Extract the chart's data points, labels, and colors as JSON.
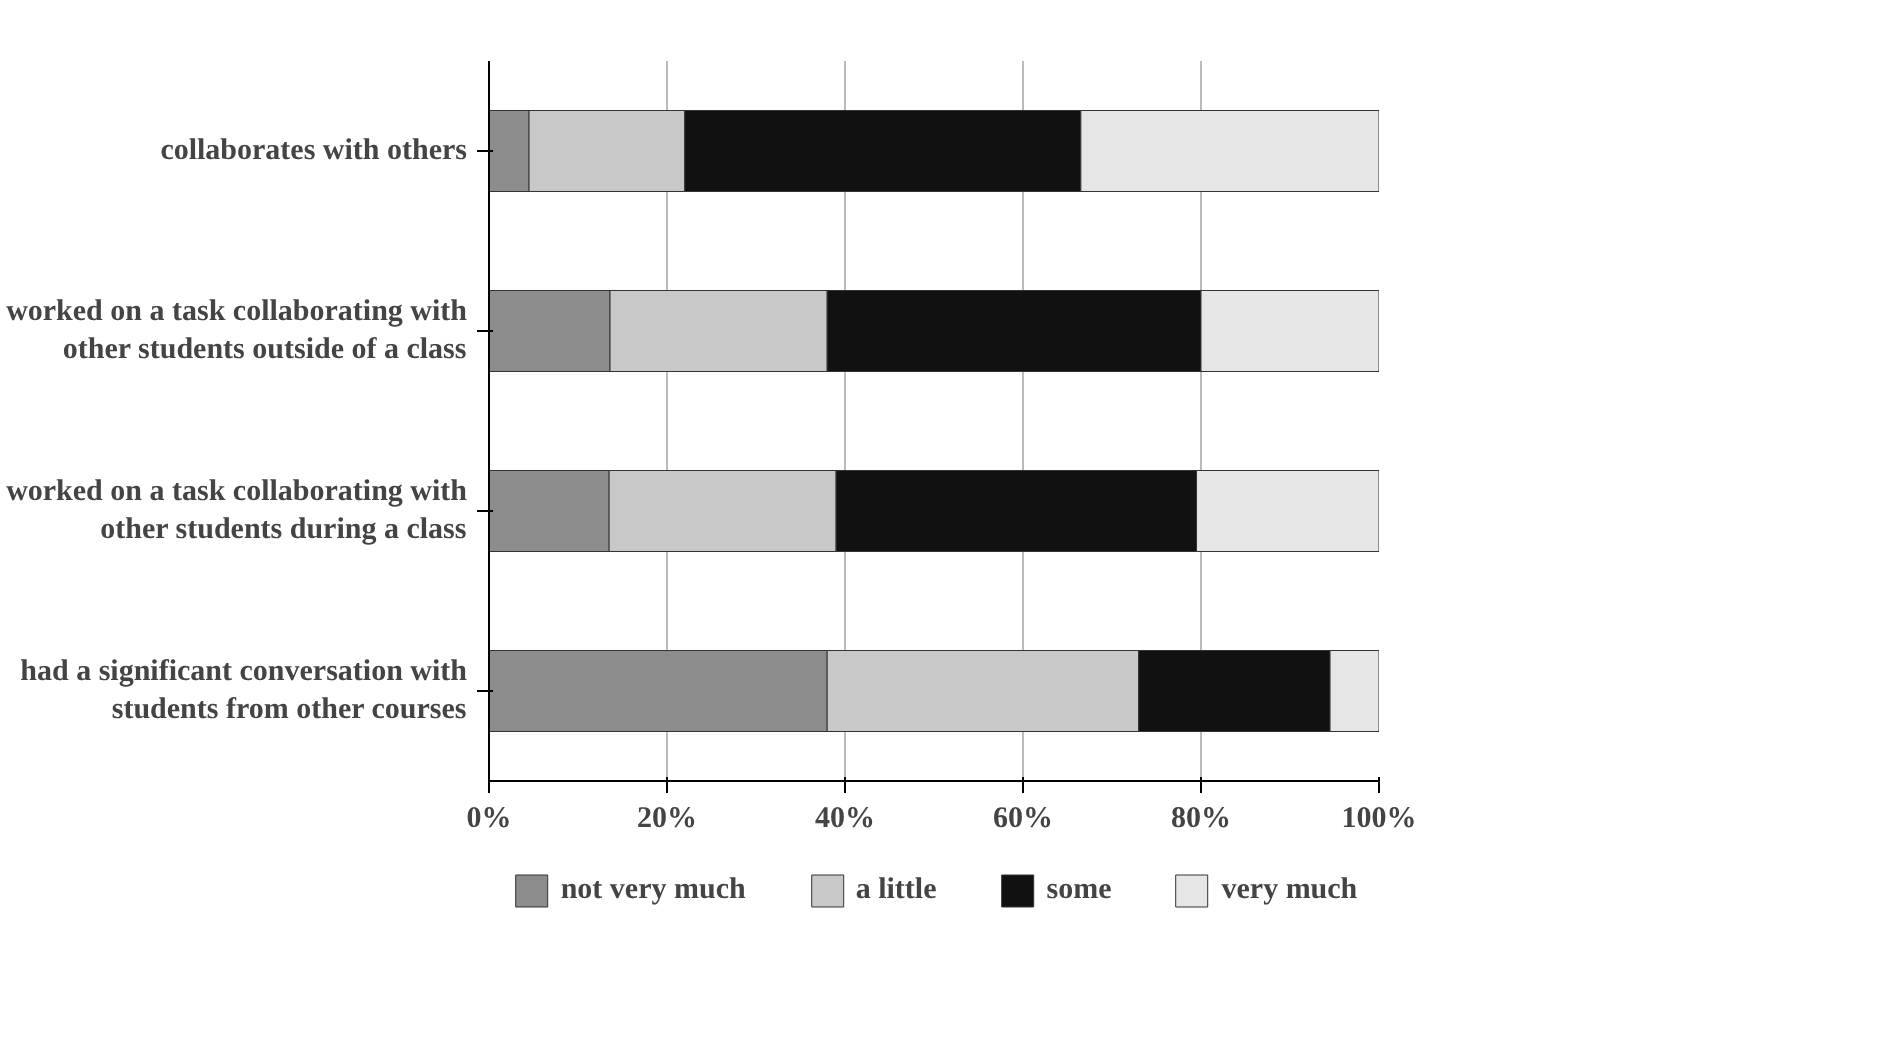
{
  "chart_data": {
    "type": "bar",
    "orientation": "horizontal",
    "stacked": true,
    "categories": [
      "collaborates with others",
      "worked on a task collaborating with other students outside of a class",
      "worked on a task collaborating with other students during a class",
      "had a significant conversation with students from other courses"
    ],
    "series": [
      {
        "name": "not very much",
        "color": "#8c8c8c",
        "values": [
          4.5,
          13.6,
          13.5,
          38
        ]
      },
      {
        "name": "a little",
        "color": "#c8c8c8",
        "values": [
          17.5,
          24.4,
          25.5,
          35
        ]
      },
      {
        "name": "some",
        "color": "#111111",
        "values": [
          44.5,
          42,
          40.5,
          21.5
        ]
      },
      {
        "name": "very much",
        "color": "#e6e6e6",
        "values": [
          33.5,
          20,
          20.5,
          5.5
        ]
      }
    ],
    "xlim": [
      0,
      100
    ],
    "xticks": [
      {
        "value": 0,
        "label": "0%"
      },
      {
        "value": 20,
        "label": "20%"
      },
      {
        "value": 40,
        "label": "40%"
      },
      {
        "value": 60,
        "label": "60%"
      },
      {
        "value": 80,
        "label": "80%"
      },
      {
        "value": 100,
        "label": "100%"
      }
    ],
    "grid": "x",
    "legend": "bottom"
  }
}
